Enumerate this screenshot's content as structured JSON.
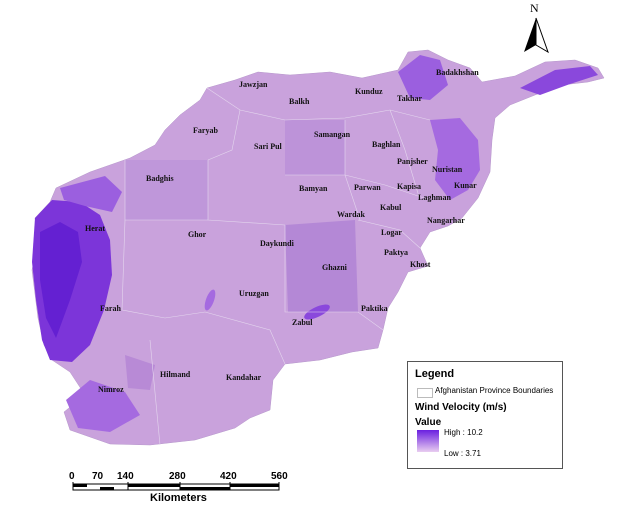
{
  "provinces": [
    {
      "name": "Jawzjan"
    },
    {
      "name": "Balkh"
    },
    {
      "name": "Kunduz"
    },
    {
      "name": "Badakhshan"
    },
    {
      "name": "Takhar"
    },
    {
      "name": "Faryab"
    },
    {
      "name": "Samangan"
    },
    {
      "name": "Baghlan"
    },
    {
      "name": "Sari Pul"
    },
    {
      "name": "Panjsher"
    },
    {
      "name": "Nuristan"
    },
    {
      "name": "Badghis"
    },
    {
      "name": "Bamyan"
    },
    {
      "name": "Parwan"
    },
    {
      "name": "Kapisa"
    },
    {
      "name": "Kunar"
    },
    {
      "name": "Laghman"
    },
    {
      "name": "Kabul"
    },
    {
      "name": "Wardak"
    },
    {
      "name": "Nangarhar"
    },
    {
      "name": "Herat"
    },
    {
      "name": "Ghor"
    },
    {
      "name": "Daykundi"
    },
    {
      "name": "Logar"
    },
    {
      "name": "Paktya"
    },
    {
      "name": "Khost"
    },
    {
      "name": "Ghazni"
    },
    {
      "name": "Uruzgan"
    },
    {
      "name": "Farah"
    },
    {
      "name": "Paktika"
    },
    {
      "name": "Zabul"
    },
    {
      "name": "Hilmand"
    },
    {
      "name": "Nimroz"
    },
    {
      "name": "Kandahar"
    }
  ],
  "legend": {
    "title": "Legend",
    "boundary_label": "Afghanistan Province Boundaries",
    "variable_title": "Wind Velocity (m/s)",
    "value_label": "Value",
    "high_label": "High : 10.2",
    "low_label": "Low : 3.71",
    "ramp_colors": {
      "high": "#6a1fe0",
      "low": "#e9cdf0"
    }
  },
  "scale_bar": {
    "ticks": [
      "0",
      "70",
      "140",
      "280",
      "420",
      "560"
    ],
    "unit": "Kilometers"
  },
  "north_arrow": {
    "label": "N",
    "icon": "north-arrow-icon"
  },
  "colors": {
    "base_fill": "#c9a2dc",
    "mid_fill": "#b88ad6",
    "high_fill": "#7a33d8",
    "boundary": "#ddd0e8"
  }
}
